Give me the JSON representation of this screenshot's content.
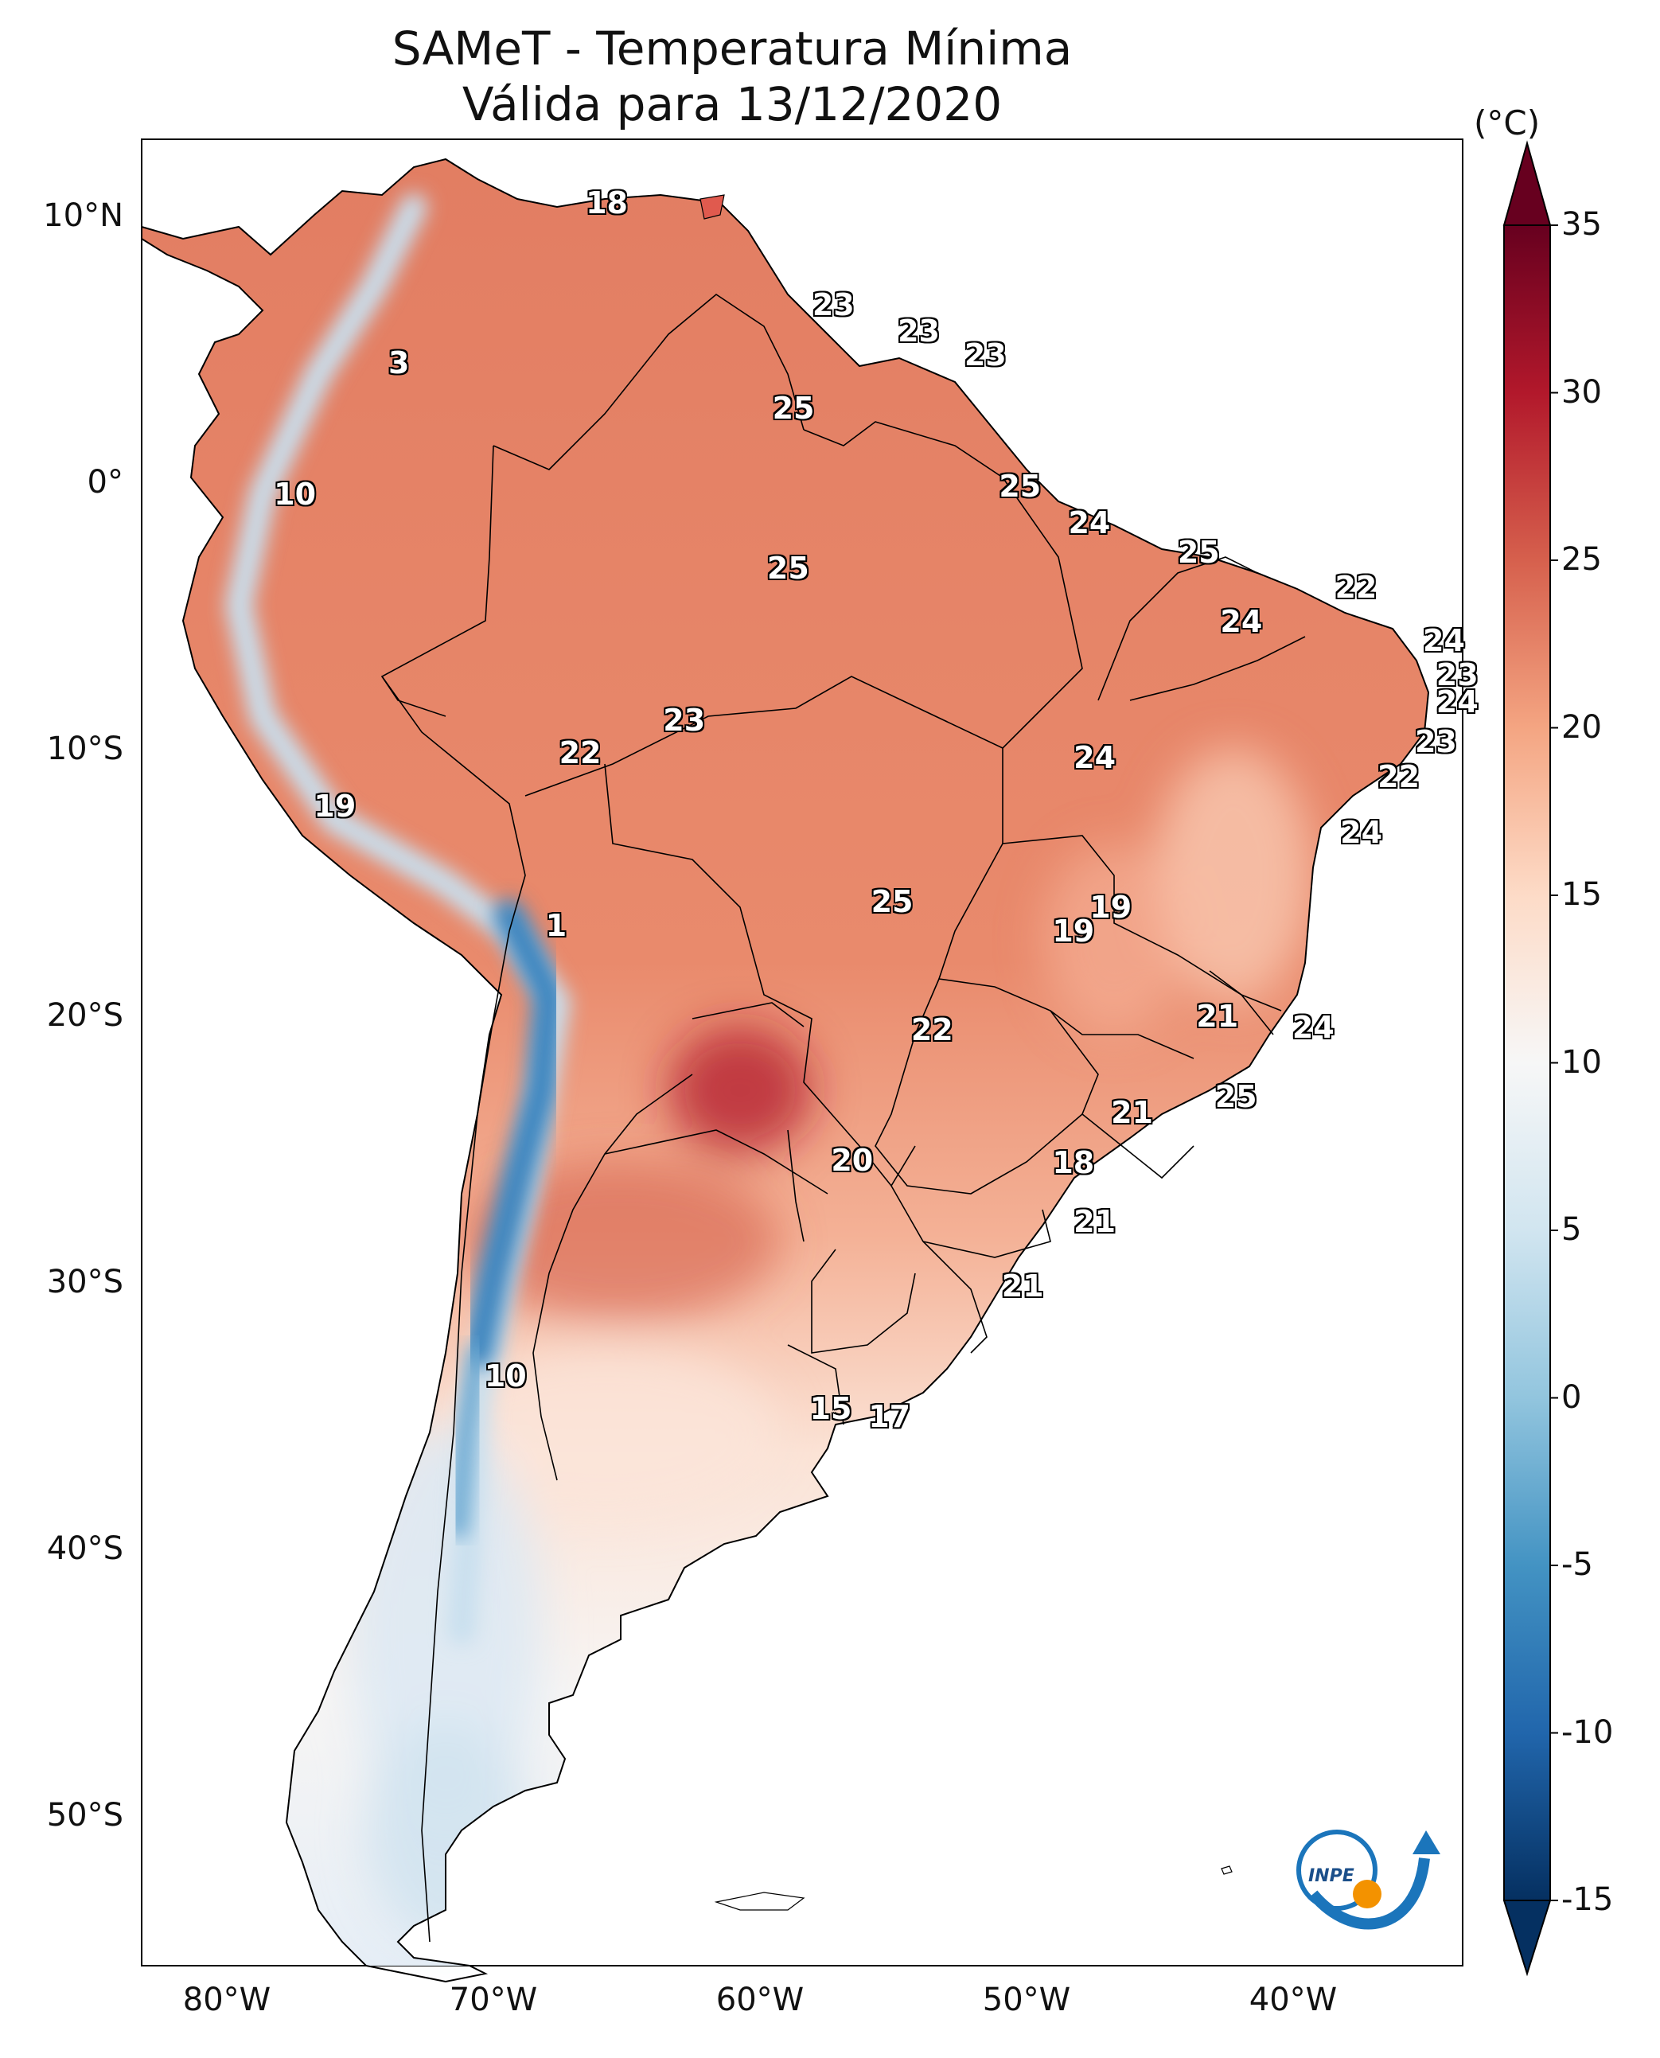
{
  "title_line1": "SAMeT - Temperatura Mínima",
  "title_line2": "Válida para 13/12/2020",
  "colorbar": {
    "unit": "(°C)",
    "ticks": [
      "35",
      "30",
      "25",
      "20",
      "15",
      "10",
      "5",
      "0",
      "-5",
      "-10",
      "-15"
    ],
    "range": [
      -15,
      35
    ],
    "colors": [
      "#053061",
      "#2166ac",
      "#4393c3",
      "#92c5de",
      "#d1e5f0",
      "#f7f7f7",
      "#fddbc7",
      "#f4a582",
      "#d6604d",
      "#b2182b",
      "#67001f"
    ]
  },
  "axes": {
    "lat_labels": [
      "10°N",
      "0°",
      "10°S",
      "20°S",
      "30°S",
      "40°S",
      "50°S"
    ],
    "lon_labels": [
      "80°W",
      "70°W",
      "60°W",
      "50°W",
      "40°W"
    ]
  },
  "logo": {
    "text": "INPE"
  },
  "station_labels": [
    {
      "text": "18",
      "lon": -66.8,
      "lat": 10.6
    },
    {
      "text": "3",
      "lon": -74.6,
      "lat": 4.6
    },
    {
      "text": "23",
      "lon": -58.3,
      "lat": 6.8
    },
    {
      "text": "23",
      "lon": -55.1,
      "lat": 5.8
    },
    {
      "text": "23",
      "lon": -52.6,
      "lat": 4.9
    },
    {
      "text": "25",
      "lon": -59.8,
      "lat": 2.9
    },
    {
      "text": "10",
      "lon": -78.5,
      "lat": -0.3
    },
    {
      "text": "25",
      "lon": -51.3,
      "lat": 0.0
    },
    {
      "text": "24",
      "lon": -48.7,
      "lat": -1.4
    },
    {
      "text": "25",
      "lon": -60.0,
      "lat": -3.1
    },
    {
      "text": "25",
      "lon": -44.6,
      "lat": -2.5
    },
    {
      "text": "22",
      "lon": -38.7,
      "lat": -3.8
    },
    {
      "text": "24",
      "lon": -43.0,
      "lat": -5.1
    },
    {
      "text": "24",
      "lon": -35.4,
      "lat": -5.8
    },
    {
      "text": "23",
      "lon": -34.9,
      "lat": -7.1
    },
    {
      "text": "24",
      "lon": -34.9,
      "lat": -8.1
    },
    {
      "text": "23",
      "lon": -63.9,
      "lat": -8.8
    },
    {
      "text": "22",
      "lon": -67.8,
      "lat": -10.0
    },
    {
      "text": "24",
      "lon": -48.5,
      "lat": -10.2
    },
    {
      "text": "23",
      "lon": -35.7,
      "lat": -9.6
    },
    {
      "text": "22",
      "lon": -37.1,
      "lat": -10.9
    },
    {
      "text": "19",
      "lon": -77.0,
      "lat": -12.0
    },
    {
      "text": "24",
      "lon": -38.5,
      "lat": -13.0
    },
    {
      "text": "25",
      "lon": -56.1,
      "lat": -15.6
    },
    {
      "text": "19",
      "lon": -47.9,
      "lat": -15.8
    },
    {
      "text": "19",
      "lon": -49.3,
      "lat": -16.7
    },
    {
      "text": "1",
      "lon": -68.7,
      "lat": -16.5
    },
    {
      "text": "21",
      "lon": -43.9,
      "lat": -19.9
    },
    {
      "text": "24",
      "lon": -40.3,
      "lat": -20.3
    },
    {
      "text": "22",
      "lon": -54.6,
      "lat": -20.4
    },
    {
      "text": "25",
      "lon": -43.2,
      "lat": -22.9
    },
    {
      "text": "21",
      "lon": -47.1,
      "lat": -23.5
    },
    {
      "text": "20",
      "lon": -57.6,
      "lat": -25.3
    },
    {
      "text": "18",
      "lon": -49.3,
      "lat": -25.4
    },
    {
      "text": "21",
      "lon": -48.5,
      "lat": -27.6
    },
    {
      "text": "21",
      "lon": -51.2,
      "lat": -30.0
    },
    {
      "text": "10",
      "lon": -70.6,
      "lat": -33.4
    },
    {
      "text": "15",
      "lon": -58.4,
      "lat": -34.6
    },
    {
      "text": "17",
      "lon": -56.2,
      "lat": -34.9
    }
  ]
}
